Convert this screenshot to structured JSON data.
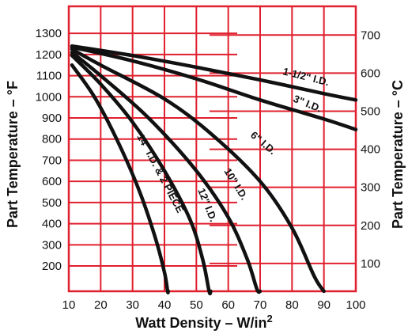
{
  "chart_data": {
    "type": "line",
    "xlabel": "Watt Density – W/in",
    "xlabel_sup": "2",
    "ylabel_left": "Part Temperature – °F",
    "ylabel_right": "Part Temperature – °C",
    "xlim": [
      10,
      100
    ],
    "ylim_f": [
      0,
      1400
    ],
    "x_ticks": [
      10,
      20,
      30,
      40,
      50,
      60,
      70,
      80,
      90,
      100
    ],
    "y_ticks_f": [
      200,
      300,
      400,
      500,
      600,
      700,
      800,
      900,
      1000,
      1100,
      1200,
      1300
    ],
    "y_ticks_c": [
      100,
      200,
      300,
      400,
      500,
      600,
      700
    ],
    "grid": true,
    "grid_color": "#e0202e",
    "line_color": "#111111",
    "series": [
      {
        "name": "1-1/2\" I.D.",
        "x": [
          11,
          30,
          50,
          70,
          90,
          100
        ],
        "y": [
          1240,
          1195,
          1140,
          1080,
          1015,
          985
        ]
      },
      {
        "name": "3\" I.D.",
        "x": [
          11,
          30,
          50,
          70,
          90,
          100
        ],
        "y": [
          1235,
          1170,
          1085,
          985,
          895,
          845
        ]
      },
      {
        "name": "6\" I.D.",
        "x": [
          11,
          20,
          40,
          55,
          70,
          80,
          87,
          90
        ],
        "y": [
          1225,
          1150,
          990,
          820,
          600,
          380,
          150,
          0
        ]
      },
      {
        "name": "10\" I.D.",
        "x": [
          11,
          20,
          35,
          50,
          60,
          66,
          69,
          70
        ],
        "y": [
          1210,
          1100,
          900,
          650,
          430,
          230,
          90,
          0
        ]
      },
      {
        "name": "12\" I.D.",
        "x": [
          11,
          20,
          30,
          40,
          48,
          52,
          54,
          54.5
        ],
        "y": [
          1195,
          1060,
          880,
          650,
          420,
          230,
          80,
          0
        ]
      },
      {
        "name": "14\" I.D. & 2 PIECE",
        "x": [
          11,
          18,
          25,
          32,
          37,
          40,
          41,
          41.2
        ],
        "y": [
          1150,
          1000,
          800,
          560,
          340,
          170,
          60,
          0
        ]
      }
    ]
  }
}
